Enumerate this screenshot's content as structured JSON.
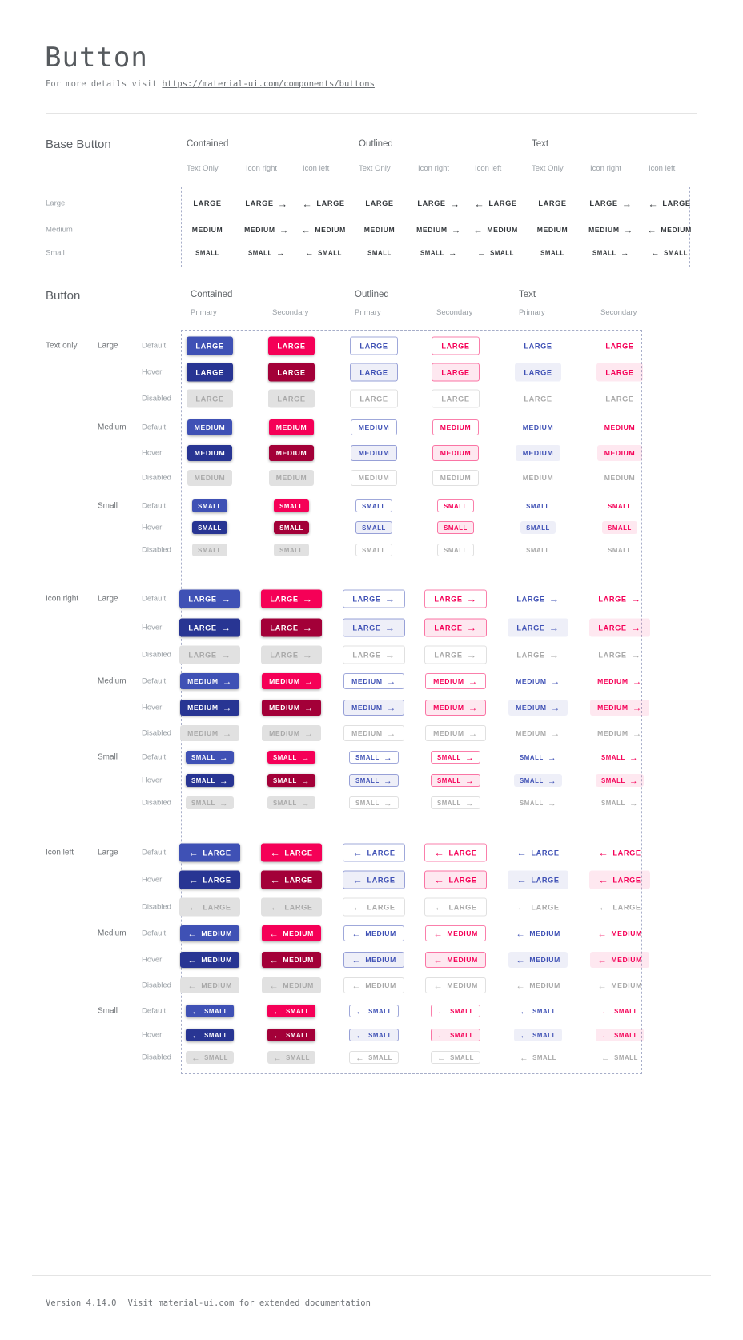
{
  "header": {
    "title": "Button",
    "subtitle_prefix": "For more details visit ",
    "subtitle_link": "https://material-ui.com/components/buttons"
  },
  "footer": {
    "version": "Version 4.14.0",
    "note": "Visit material-ui.com for extended documentation"
  },
  "base_section": {
    "title": "Base Button",
    "group_headers": [
      "Contained",
      "Outlined",
      "Text"
    ],
    "variant_headers": [
      "Text Only",
      "Icon right",
      "Icon left"
    ],
    "row_labels": [
      "Large",
      "Medium",
      "Small"
    ],
    "button_texts": [
      "LARGE",
      "MEDIUM",
      "SMALL"
    ]
  },
  "button_section": {
    "title": "Button",
    "group_headers": [
      "Contained",
      "Outlined",
      "Text"
    ],
    "palette_headers": [
      "Primary",
      "Secondary"
    ],
    "icon_group_labels": [
      "Text only",
      "Icon right",
      "Icon left"
    ],
    "size_labels": [
      "Large",
      "Medium",
      "Small"
    ],
    "state_labels": [
      "Default",
      "Hover",
      "Disabled"
    ],
    "button_texts": [
      "LARGE",
      "MEDIUM",
      "SMALL"
    ]
  },
  "icons": {
    "arrow_right": "→",
    "arrow_left": "←"
  },
  "colors": {
    "primary": "#3f51b5",
    "primary_hover": "#283593",
    "secondary": "#f50057",
    "secondary_hover": "#a30038",
    "disabled_bg": "#e1e1e1",
    "disabled_text": "#a9a9a9",
    "outlined_primary_border": "rgba(63,81,181,0.5)",
    "outlined_secondary_border": "rgba(245,0,87,0.5)",
    "primary_tint": "rgba(63,81,181,0.09)",
    "secondary_tint": "rgba(245,0,87,0.09)",
    "disabled_border": "rgba(0,0,0,0.12)"
  }
}
